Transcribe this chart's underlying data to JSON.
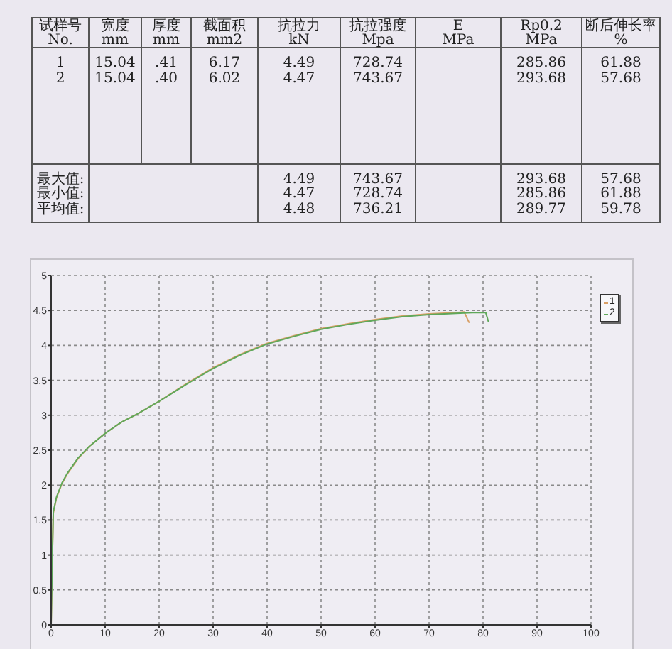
{
  "chart_data": [
    {
      "type": "other",
      "categories": [
        "试样号\nNo.",
        "宽度\nmm",
        "厚度\nmm",
        "截面积\nmm2",
        "抗拉力\nkN",
        "抗拉强度\nMpa",
        "E\nMPa",
        "Rp0.2\nMPa",
        "断后伸长率\n%"
      ],
      "cell_labels": [
        [
          "1",
          "15.04",
          ".41",
          "6.17",
          "4.49",
          "728.74",
          null,
          "285.86",
          "61.88"
        ],
        [
          "2",
          "15.04",
          ".40",
          "6.02",
          "4.47",
          "743.67",
          null,
          "293.68",
          "57.68"
        ],
        [
          null,
          null,
          null,
          null,
          null,
          null,
          null,
          null,
          null
        ],
        [
          "最大值:",
          null,
          null,
          null,
          "4.49",
          "743.67",
          null,
          "293.68",
          "57.68"
        ],
        [
          "最小值:",
          null,
          null,
          null,
          "4.47",
          "728.74",
          null,
          "285.86",
          "61.88"
        ],
        [
          "平均值:",
          null,
          null,
          null,
          "4.48",
          "736.21",
          null,
          "289.77",
          "59.78"
        ]
      ]
    },
    {
      "type": "line",
      "xlim": [
        0,
        100
      ],
      "xticks": [
        0,
        10,
        20,
        30,
        40,
        50,
        60,
        70,
        80,
        90,
        100
      ],
      "ylim": [
        0,
        5
      ],
      "yticks": [
        0,
        0.5,
        1,
        1.5,
        2,
        2.5,
        3,
        3.5,
        4,
        4.5,
        5
      ],
      "grid": true,
      "legend": "top right",
      "marker": "none",
      "line_style": "solid",
      "series": [
        {
          "name": "1",
          "color": "#d9a066",
          "x": [
            0,
            0.2,
            0.4,
            1,
            2,
            3,
            5,
            7,
            10,
            13,
            16,
            20,
            25,
            30,
            35,
            40,
            45,
            50,
            55,
            60,
            65,
            70,
            75,
            76.5,
            77.4
          ],
          "values": [
            0,
            0.9,
            1.6,
            1.82,
            2.02,
            2.16,
            2.38,
            2.55,
            2.74,
            2.9,
            3.02,
            3.2,
            3.45,
            3.68,
            3.87,
            4.03,
            4.14,
            4.24,
            4.31,
            4.37,
            4.42,
            4.45,
            4.47,
            4.48,
            4.33
          ]
        },
        {
          "name": "2",
          "color": "#5fa85a",
          "x": [
            0,
            0.2,
            0.4,
            1,
            2,
            3,
            5,
            7,
            10,
            13,
            16,
            20,
            25,
            30,
            35,
            40,
            45,
            50,
            55,
            60,
            65,
            70,
            75,
            78,
            80.5,
            81
          ],
          "values": [
            0,
            0.9,
            1.62,
            1.83,
            2.03,
            2.17,
            2.39,
            2.55,
            2.74,
            2.9,
            3.02,
            3.2,
            3.44,
            3.67,
            3.86,
            4.02,
            4.13,
            4.23,
            4.3,
            4.36,
            4.41,
            4.44,
            4.46,
            4.47,
            4.47,
            4.34
          ]
        }
      ]
    }
  ]
}
